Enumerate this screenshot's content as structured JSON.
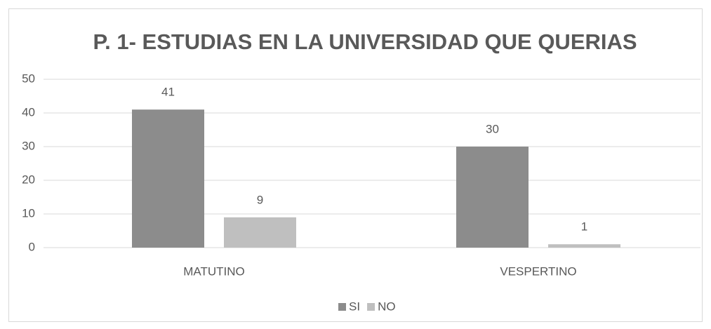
{
  "chart_data": {
    "type": "bar",
    "title": "P. 1- ESTUDIAS EN LA UNIVERSIDAD QUE QUERIAS",
    "categories": [
      "MATUTINO",
      "VESPERTINO"
    ],
    "series": [
      {
        "name": "SI",
        "color": "#8c8c8c",
        "values": [
          41,
          30
        ]
      },
      {
        "name": "NO",
        "color": "#bfbfbf",
        "values": [
          9,
          1
        ]
      }
    ],
    "ylim": [
      0,
      50
    ],
    "yticks": [
      0,
      10,
      20,
      30,
      40,
      50
    ],
    "grid": true,
    "legend": "bottom"
  }
}
